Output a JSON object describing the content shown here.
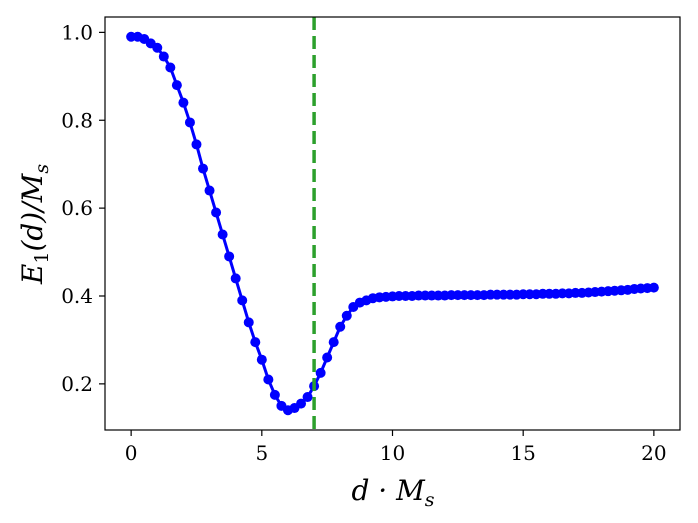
{
  "chart_data": {
    "type": "line",
    "xlabel": "d · M",
    "xlabel_sub": "s",
    "ylabel_main": "E",
    "ylabel_sub1": "1",
    "ylabel_mid": "(d)/M",
    "ylabel_sub2": "s",
    "xlim": [
      -1,
      21
    ],
    "ylim": [
      0.095,
      1.035
    ],
    "xticks": [
      0,
      5,
      10,
      15,
      20
    ],
    "xtick_labels": [
      "0",
      "5",
      "10",
      "15",
      "20"
    ],
    "yticks": [
      0.2,
      0.4,
      0.6,
      0.8,
      1.0
    ],
    "ytick_labels": [
      "0.2",
      "0.4",
      "0.6",
      "0.8",
      "1.0"
    ],
    "grid": false,
    "vline": {
      "x": 7.0,
      "style": "dashed",
      "color": "#2ca02c"
    },
    "series": [
      {
        "color": "#0000ff",
        "marker": "circle",
        "x": [
          0,
          0.25,
          0.5,
          0.75,
          1,
          1.25,
          1.5,
          1.75,
          2,
          2.25,
          2.5,
          2.75,
          3,
          3.25,
          3.5,
          3.75,
          4,
          4.25,
          4.5,
          4.75,
          5,
          5.25,
          5.5,
          5.75,
          6,
          6.25,
          6.5,
          6.75,
          7,
          7.25,
          7.5,
          7.75,
          8,
          8.25,
          8.5,
          8.75,
          9,
          9.25,
          9.5,
          9.75,
          10,
          10.25,
          10.5,
          10.75,
          11,
          11.25,
          11.5,
          11.75,
          12,
          12.25,
          12.5,
          12.75,
          13,
          13.25,
          13.5,
          13.75,
          14,
          14.25,
          14.5,
          14.75,
          15,
          15.25,
          15.5,
          15.75,
          16,
          16.25,
          16.5,
          16.75,
          17,
          17.25,
          17.5,
          17.75,
          18,
          18.25,
          18.5,
          18.75,
          19,
          19.25,
          19.5,
          19.75,
          20
        ],
        "y": [
          0.99,
          0.99,
          0.985,
          0.975,
          0.965,
          0.945,
          0.92,
          0.88,
          0.84,
          0.795,
          0.745,
          0.69,
          0.64,
          0.59,
          0.54,
          0.49,
          0.44,
          0.39,
          0.34,
          0.295,
          0.255,
          0.21,
          0.175,
          0.15,
          0.14,
          0.145,
          0.155,
          0.17,
          0.195,
          0.225,
          0.26,
          0.295,
          0.33,
          0.355,
          0.375,
          0.385,
          0.39,
          0.395,
          0.397,
          0.398,
          0.399,
          0.4,
          0.4,
          0.4,
          0.401,
          0.401,
          0.401,
          0.401,
          0.401,
          0.402,
          0.402,
          0.402,
          0.402,
          0.402,
          0.402,
          0.403,
          0.403,
          0.403,
          0.403,
          0.403,
          0.404,
          0.404,
          0.404,
          0.405,
          0.405,
          0.405,
          0.406,
          0.406,
          0.407,
          0.407,
          0.408,
          0.409,
          0.41,
          0.411,
          0.412,
          0.413,
          0.414,
          0.416,
          0.417,
          0.418,
          0.419
        ]
      }
    ]
  }
}
